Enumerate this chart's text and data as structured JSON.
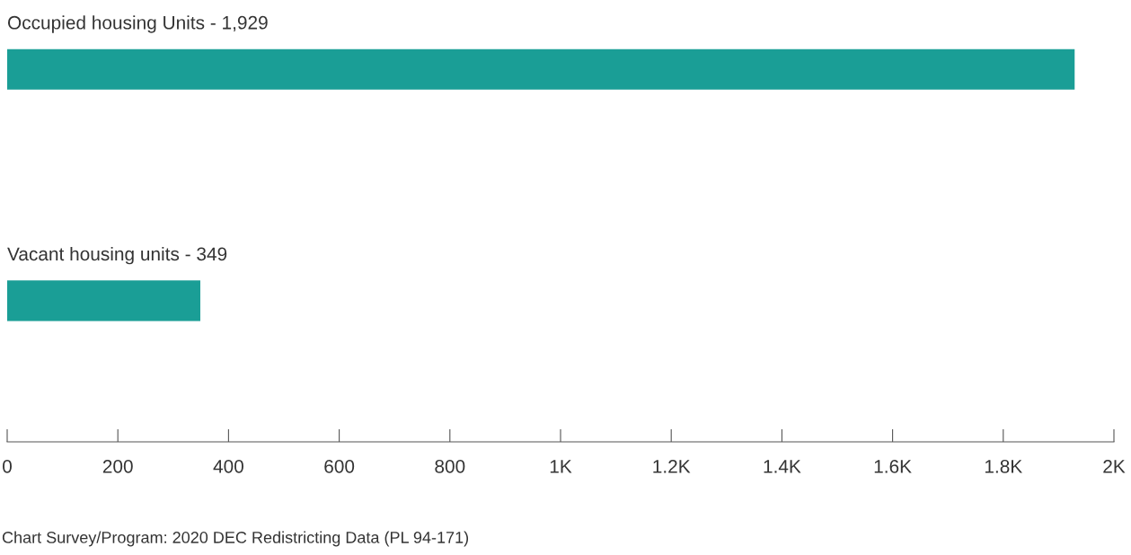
{
  "chart_data": {
    "type": "bar",
    "orientation": "horizontal",
    "categories": [
      "Occupied housing Units - 1,929",
      "Vacant housing units - 349"
    ],
    "values": [
      1929,
      349
    ],
    "color": "#1a9e96",
    "xlim": [
      0,
      2000
    ],
    "xticks": [
      0,
      200,
      400,
      600,
      800,
      {
        "value": 1000,
        "label": "1K"
      },
      {
        "value": 1200,
        "label": "1.2K"
      },
      {
        "value": 1400,
        "label": "1.4K"
      },
      {
        "value": 1600,
        "label": "1.6K"
      },
      {
        "value": 1800,
        "label": "1.8K"
      },
      {
        "value": 2000,
        "label": "2K"
      }
    ],
    "grid": false,
    "legend": false,
    "annotations": [
      "Chart Survey/Program: 2020 DEC Redistricting Data (PL 94-171)"
    ]
  }
}
